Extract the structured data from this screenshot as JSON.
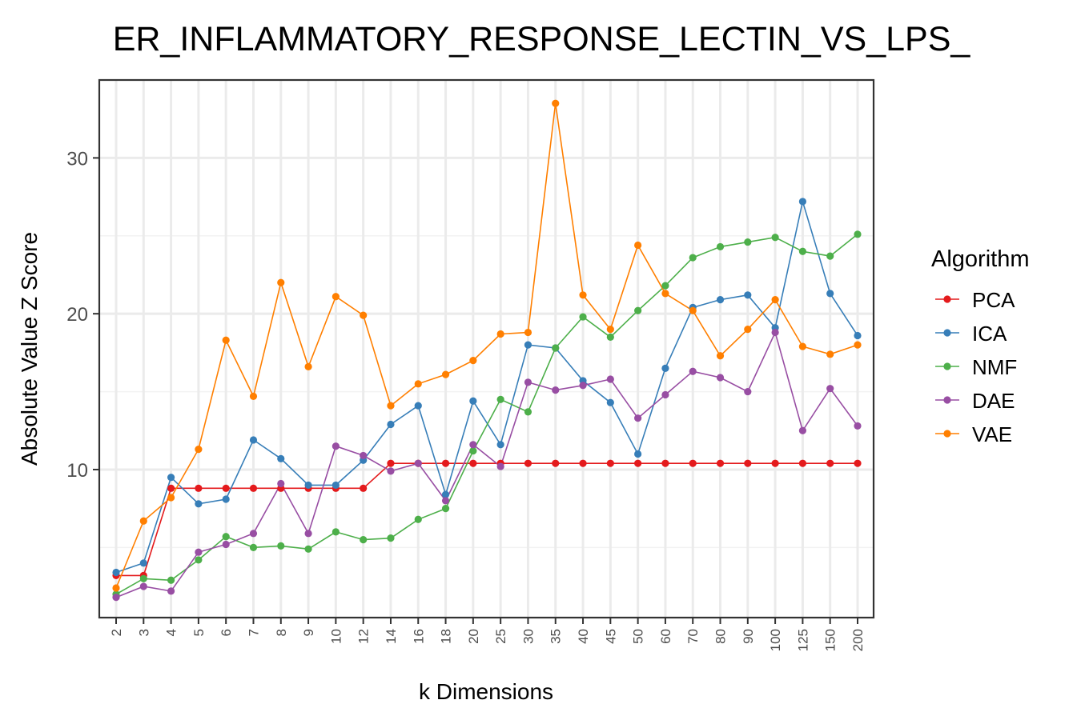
{
  "chart_data": {
    "type": "line",
    "title": "ER_INFLAMMATORY_RESPONSE_LECTIN_VS_LPS_",
    "xlabel": "k Dimensions",
    "ylabel": "Absolute Value Z Score",
    "ylim": [
      0.5,
      35
    ],
    "yticks": [
      10,
      20,
      30
    ],
    "grid": true,
    "legend": {
      "title": "Algorithm",
      "position": "right"
    },
    "categories": [
      "2",
      "3",
      "4",
      "5",
      "6",
      "7",
      "8",
      "9",
      "10",
      "12",
      "14",
      "16",
      "18",
      "20",
      "25",
      "30",
      "35",
      "40",
      "45",
      "50",
      "60",
      "70",
      "80",
      "90",
      "100",
      "125",
      "150",
      "200"
    ],
    "series": [
      {
        "name": "PCA",
        "color": "#E41A1C",
        "values": [
          3.2,
          3.2,
          8.8,
          8.8,
          8.8,
          8.8,
          8.8,
          8.8,
          8.8,
          8.8,
          10.4,
          10.4,
          10.4,
          10.4,
          10.4,
          10.4,
          10.4,
          10.4,
          10.4,
          10.4,
          10.4,
          10.4,
          10.4,
          10.4,
          10.4,
          10.4,
          10.4,
          10.4
        ]
      },
      {
        "name": "ICA",
        "color": "#377EB8",
        "values": [
          3.4,
          4.0,
          9.5,
          7.8,
          8.1,
          11.9,
          10.7,
          9.0,
          9.0,
          10.6,
          12.9,
          14.1,
          8.4,
          14.4,
          11.6,
          18.0,
          17.8,
          15.7,
          14.3,
          11.0,
          16.5,
          20.4,
          20.9,
          21.2,
          19.1,
          27.2,
          21.3,
          18.6
        ]
      },
      {
        "name": "NMF",
        "color": "#4DAF4A",
        "values": [
          2.0,
          3.0,
          2.9,
          4.2,
          5.7,
          5.0,
          5.1,
          4.9,
          6.0,
          5.5,
          5.6,
          6.8,
          7.5,
          11.2,
          14.5,
          13.7,
          17.8,
          19.8,
          18.5,
          20.2,
          21.8,
          23.6,
          24.3,
          24.6,
          24.9,
          24.0,
          23.7,
          25.1
        ]
      },
      {
        "name": "DAE",
        "color": "#984EA3",
        "values": [
          1.8,
          2.5,
          2.2,
          4.7,
          5.2,
          5.9,
          9.1,
          5.9,
          11.5,
          10.9,
          9.9,
          10.4,
          8.0,
          11.6,
          10.2,
          15.6,
          15.1,
          15.4,
          15.8,
          13.3,
          14.8,
          16.3,
          15.9,
          15.0,
          18.8,
          12.5,
          15.2,
          12.8
        ]
      },
      {
        "name": "VAE",
        "color": "#FF7F00",
        "values": [
          2.4,
          6.7,
          8.2,
          11.3,
          18.3,
          14.7,
          22.0,
          16.6,
          21.1,
          19.9,
          14.1,
          15.5,
          16.1,
          17.0,
          18.7,
          18.8,
          33.5,
          21.2,
          19.0,
          24.4,
          21.3,
          20.2,
          17.3,
          19.0,
          20.9,
          17.9,
          17.4,
          18.0
        ]
      }
    ]
  }
}
